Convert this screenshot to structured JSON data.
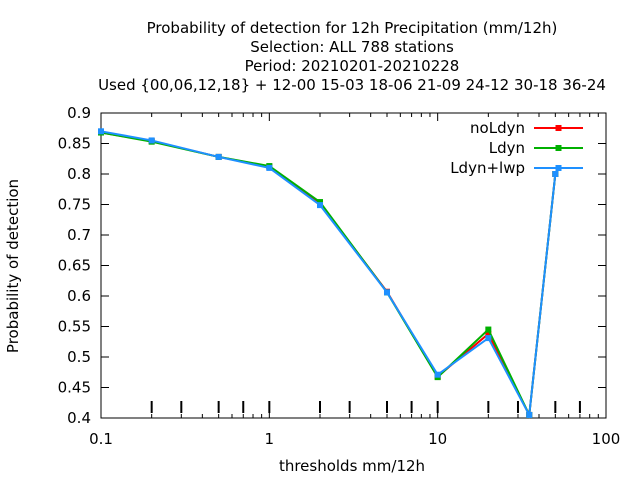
{
  "chart_data": {
    "type": "line",
    "title_lines": [
      "Probability of detection  for 12h Precipitation (mm/12h)",
      "Selection: ALL    788 stations",
      "Period: 20210201-20210228",
      "Used {00,06,12,18} + 12-00 15-03 18-06 21-09 24-12 30-18 36-24"
    ],
    "xlabel": "thresholds mm/12h",
    "ylabel": "Probability of detection",
    "x_scale": "log",
    "xlim": [
      0.1,
      100
    ],
    "ylim": [
      0.4,
      0.9
    ],
    "x_ticks": [
      0.1,
      1,
      10,
      100
    ],
    "x_tick_labels": [
      "0.1",
      "1",
      "10",
      "100"
    ],
    "y_ticks": [
      0.4,
      0.45,
      0.5,
      0.55,
      0.6,
      0.65,
      0.7,
      0.75,
      0.8,
      0.85,
      0.9
    ],
    "y_tick_labels": [
      "0.4",
      "0.45",
      "0.5",
      "0.55",
      "0.6",
      "0.65",
      "0.7",
      "0.75",
      "0.8",
      "0.85",
      "0.9"
    ],
    "legend_position": "top-right",
    "grid": false,
    "x": [
      0.1,
      0.2,
      0.5,
      1,
      2,
      5,
      10,
      20,
      35,
      50
    ],
    "series": [
      {
        "name": "noLdyn",
        "color": "#ff0000",
        "values": [
          0.868,
          0.854,
          0.828,
          0.812,
          0.752,
          0.607,
          0.468,
          0.538,
          0.405,
          0.8
        ]
      },
      {
        "name": "Ldyn",
        "color": "#00b000",
        "values": [
          0.868,
          0.853,
          0.828,
          0.813,
          0.754,
          0.606,
          0.467,
          0.545,
          0.405,
          0.8
        ]
      },
      {
        "name": "Ldyn+lwp",
        "color": "#1e90ff",
        "values": [
          0.87,
          0.855,
          0.828,
          0.81,
          0.749,
          0.606,
          0.471,
          0.531,
          0.405,
          0.8
        ]
      }
    ]
  }
}
